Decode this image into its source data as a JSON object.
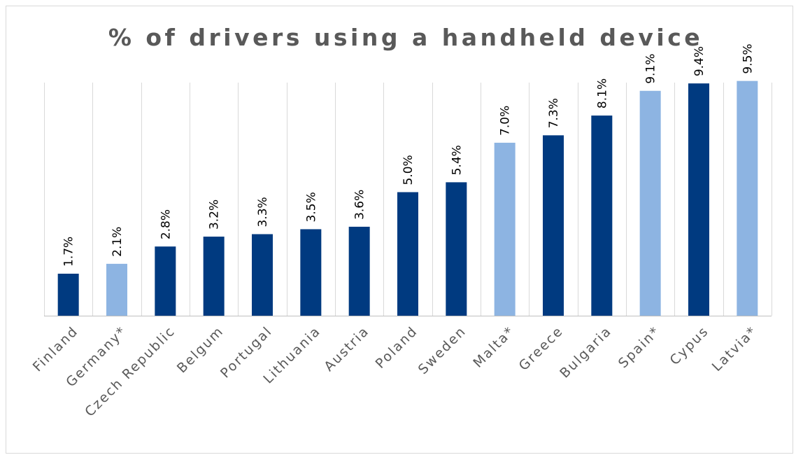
{
  "chart_data": {
    "type": "bar",
    "title": "% of drivers using a handheld device",
    "xlabel": "",
    "ylabel": "",
    "ylim": [
      0,
      10
    ],
    "grid": "vertical",
    "legend": "none",
    "categories": [
      "Finland",
      "Germany*",
      "Czech Republic",
      "Belgum",
      "Portugal",
      "Lithuania",
      "Austria",
      "Poland",
      "Sweden",
      "Malta*",
      "Greece",
      "Bulgaria",
      "Spain*",
      "Cypus",
      "Latvia*"
    ],
    "values": [
      1.7,
      2.1,
      2.8,
      3.2,
      3.3,
      3.5,
      3.6,
      5.0,
      5.4,
      7.0,
      7.3,
      8.1,
      9.1,
      9.4,
      9.5
    ],
    "data_labels": [
      "1.7%",
      "2.1%",
      "2.8%",
      "3.2%",
      "3.3%",
      "3.5%",
      "3.6%",
      "5.0%",
      "5.4%",
      "7.0%",
      "7.3%",
      "8.1%",
      "9.1%",
      "9.4%",
      "9.5%"
    ],
    "highlighted": [
      false,
      true,
      false,
      false,
      false,
      false,
      false,
      false,
      false,
      true,
      false,
      false,
      true,
      false,
      true
    ],
    "colors": {
      "primary": "#003a80",
      "highlight": "#8db4e2",
      "grid": "#d9d9d9",
      "text": "#595959"
    }
  }
}
